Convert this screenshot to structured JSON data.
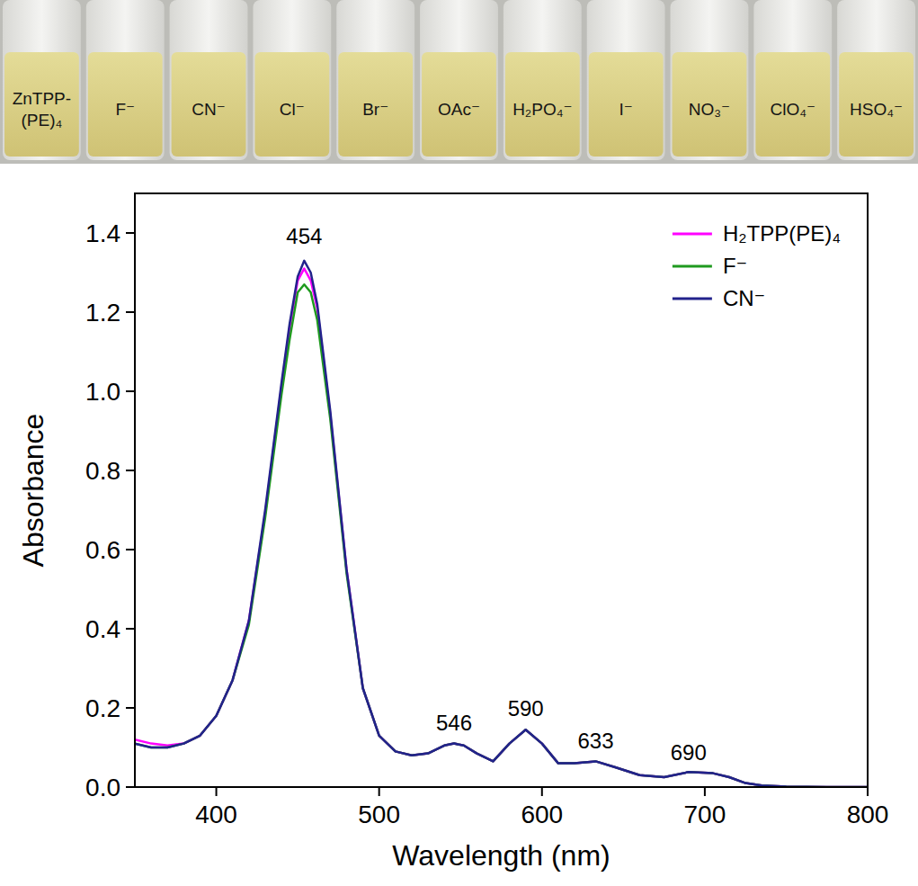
{
  "photo": {
    "labels": [
      "ZnTPP-(PE)₄",
      "F⁻",
      "CN⁻",
      "Cl⁻",
      "Br⁻",
      "OAc⁻",
      "H₂PO₄⁻",
      "I⁻",
      "NO₃⁻",
      "ClO₄⁻",
      "HSO₄⁻"
    ]
  },
  "chart_data": {
    "type": "line",
    "x_label": "Wavelength (nm)",
    "y_label": "Absorbance",
    "x": [
      350,
      360,
      370,
      380,
      390,
      400,
      410,
      420,
      430,
      440,
      445,
      450,
      454,
      458,
      462,
      470,
      480,
      490,
      500,
      510,
      520,
      530,
      540,
      546,
      552,
      560,
      570,
      580,
      590,
      600,
      610,
      620,
      633,
      645,
      660,
      675,
      690,
      705,
      715,
      725,
      735,
      750,
      775,
      800
    ],
    "series": [
      {
        "name": "H₂TPP(PE)₄",
        "color": "#ff00ff",
        "values": [
          0.12,
          0.11,
          0.105,
          0.11,
          0.13,
          0.18,
          0.27,
          0.42,
          0.69,
          1.01,
          1.16,
          1.28,
          1.31,
          1.28,
          1.21,
          0.94,
          0.55,
          0.25,
          0.13,
          0.09,
          0.08,
          0.085,
          0.105,
          0.11,
          0.105,
          0.085,
          0.065,
          0.11,
          0.145,
          0.11,
          0.06,
          0.06,
          0.065,
          0.05,
          0.03,
          0.025,
          0.038,
          0.035,
          0.025,
          0.01,
          0.004,
          0.001,
          0,
          0
        ]
      },
      {
        "name": "F⁻",
        "color": "#1f9a1f",
        "values": [
          0.11,
          0.1,
          0.1,
          0.11,
          0.13,
          0.18,
          0.27,
          0.41,
          0.68,
          0.99,
          1.13,
          1.25,
          1.27,
          1.25,
          1.18,
          0.93,
          0.54,
          0.25,
          0.13,
          0.09,
          0.08,
          0.085,
          0.105,
          0.11,
          0.105,
          0.085,
          0.065,
          0.11,
          0.145,
          0.11,
          0.06,
          0.06,
          0.065,
          0.05,
          0.03,
          0.025,
          0.038,
          0.035,
          0.025,
          0.01,
          0.004,
          0.001,
          0,
          0
        ]
      },
      {
        "name": "CN⁻",
        "color": "#22228c",
        "values": [
          0.11,
          0.1,
          0.1,
          0.11,
          0.13,
          0.18,
          0.27,
          0.42,
          0.7,
          1.02,
          1.17,
          1.29,
          1.33,
          1.3,
          1.22,
          0.95,
          0.55,
          0.25,
          0.13,
          0.09,
          0.08,
          0.085,
          0.105,
          0.11,
          0.105,
          0.085,
          0.065,
          0.11,
          0.145,
          0.11,
          0.06,
          0.06,
          0.065,
          0.05,
          0.03,
          0.025,
          0.038,
          0.035,
          0.025,
          0.01,
          0.004,
          0.001,
          0,
          0
        ]
      }
    ],
    "xlim": [
      350,
      800
    ],
    "xticks": [
      400,
      500,
      600,
      700,
      800
    ],
    "ylim": [
      0,
      1.5
    ],
    "yticks": [
      {
        "value": 0,
        "label": "0.0"
      },
      {
        "value": 0.2,
        "label": "0.2"
      },
      {
        "value": 0.4,
        "label": "0.4"
      },
      {
        "value": 0.6,
        "label": "0.6"
      },
      {
        "value": 0.8,
        "label": "0.8"
      },
      {
        "value": 1.0,
        "label": "1.0"
      },
      {
        "value": 1.2,
        "label": "1.2"
      },
      {
        "value": 1.4,
        "label": "1.4"
      }
    ],
    "annotations": [
      {
        "x": 454,
        "y": 1.36
      },
      {
        "x": 546,
        "y": 0.13
      },
      {
        "x": 590,
        "y": 0.165
      },
      {
        "x": 633,
        "y": 0.085
      },
      {
        "x": 690,
        "y": 0.055
      }
    ],
    "legend": "upper right",
    "grid": false
  }
}
